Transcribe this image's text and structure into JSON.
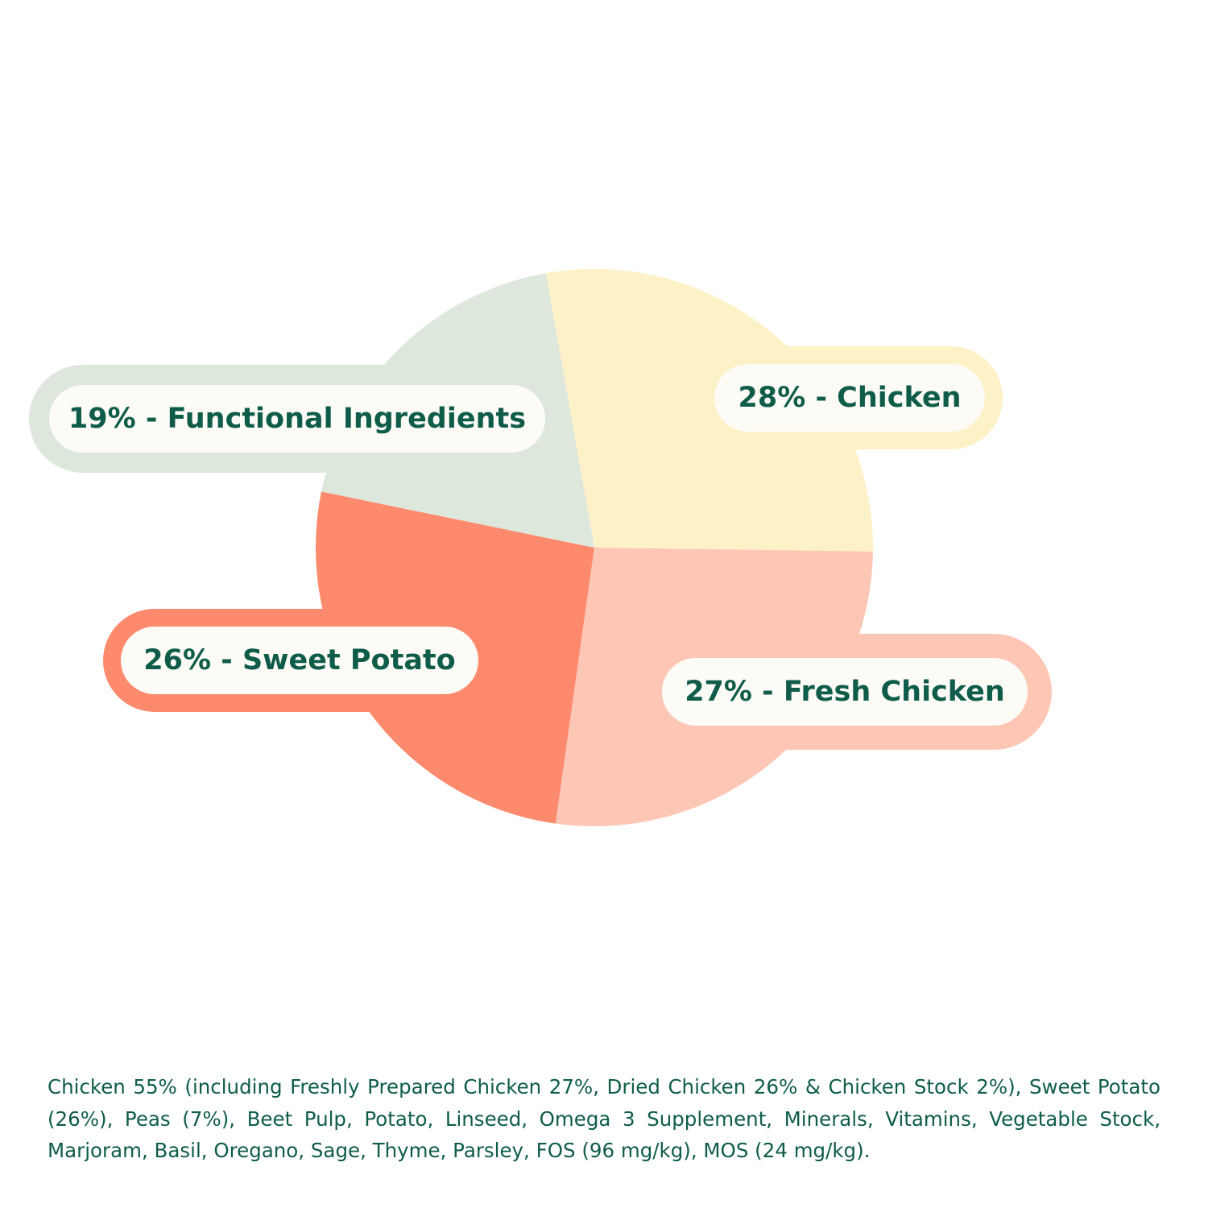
{
  "chart_data": {
    "type": "pie",
    "slices": [
      {
        "label": "28% - Chicken",
        "value": 28,
        "color": "#fdf1c7",
        "outline": "#fdf1c7"
      },
      {
        "label": "27% - Fresh Chicken",
        "value": 27,
        "color": "#fec7b5",
        "outline": "#fec7b5"
      },
      {
        "label": "26% - Sweet Potato",
        "value": 26,
        "color": "#fe8a6e",
        "outline": "#fe8a6e"
      },
      {
        "label": "19% - Functional Ingredients",
        "value": 19,
        "color": "#dde7dc",
        "outline": "#dde7dc"
      }
    ],
    "label_color": "#0f5c4a",
    "pill_fill": "#fcfbf6"
  },
  "ingredients_text": "Chicken 55% (including Freshly Prepared Chicken 27%, Dried Chicken 26% & Chicken Stock 2%), Sweet Potato (26%), Peas (7%), Beet Pulp, Potato, Linseed, Omega 3 Supplement, Minerals, Vitamins, Vegetable Stock, Marjoram, Basil, Oregano, Sage, Thyme, Parsley, FOS (96 mg/kg), MOS (24 mg/kg)."
}
